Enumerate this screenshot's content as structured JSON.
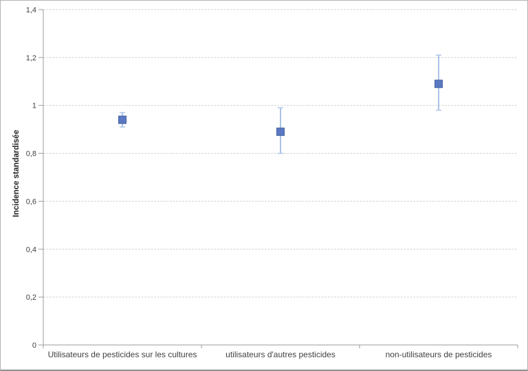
{
  "chart_data": {
    "type": "scatter",
    "title": "",
    "xlabel": "",
    "ylabel": "Incidence standardisée",
    "ylim": [
      0,
      1.4
    ],
    "ytick_step": 0.2,
    "ytick_labels": [
      "0",
      "0,2",
      "0,4",
      "0,6",
      "0,8",
      "1",
      "1,2",
      "1,4"
    ],
    "decimal_separator": ",",
    "grid": true,
    "legend": "none",
    "categories": [
      "Utilisateurs de pesticides sur les cultures",
      "utilisateurs d'autres pesticides",
      "non-utilisateurs de pesticides"
    ],
    "series": [
      {
        "name": "Incidence standardisée",
        "values": [
          0.94,
          0.89,
          1.09
        ],
        "ci_low": [
          0.91,
          0.8,
          0.98
        ],
        "ci_high": [
          0.97,
          0.99,
          1.21
        ]
      }
    ],
    "colors": {
      "marker_fill": "#5b79c2",
      "marker_border": "#44639f",
      "error_bar": "#aac2e6",
      "gridline": "#d3d3d3",
      "axis": "#9b9b9b",
      "tick_text": "#404040",
      "axis_title_text": "#262626"
    }
  }
}
